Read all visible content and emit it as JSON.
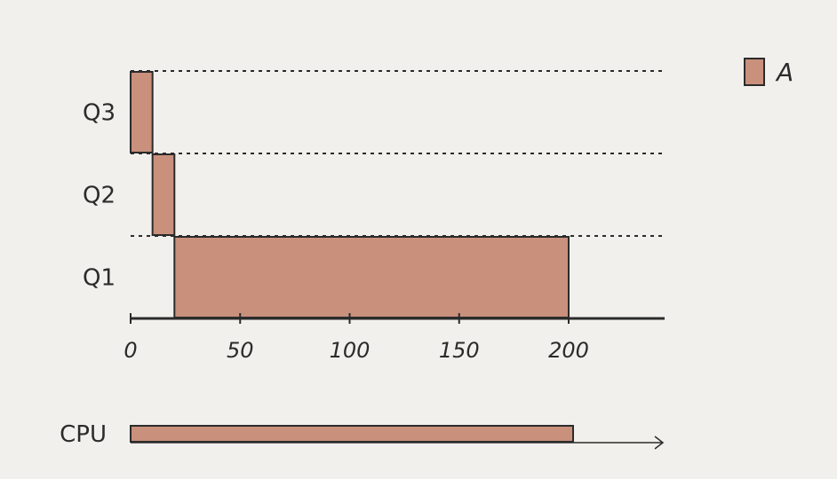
{
  "chart_data": {
    "type": "bar",
    "subtype": "gantt",
    "lanes": [
      "Q3",
      "Q2",
      "Q1"
    ],
    "x_ticks": [
      0,
      50,
      100,
      150,
      200
    ],
    "xlim": [
      0,
      245
    ],
    "series": [
      {
        "name": "A",
        "color": "#c9907c",
        "segments": [
          {
            "lane": "Q3",
            "start": 0,
            "end": 10
          },
          {
            "lane": "Q2",
            "start": 10,
            "end": 20
          },
          {
            "lane": "Q1",
            "start": 20,
            "end": 200
          }
        ]
      }
    ],
    "cpu": {
      "label": "CPU",
      "segments": [
        {
          "series": "A",
          "start": 0,
          "end": 200
        }
      ]
    },
    "legend": {
      "position": "top-right",
      "entries": [
        "A"
      ]
    },
    "lane_separators": "dashed",
    "grid": false
  }
}
